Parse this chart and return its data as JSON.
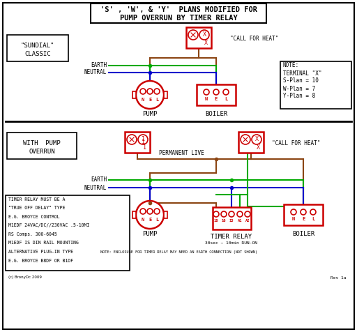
{
  "title_line1": "'S' , 'W', & 'Y'  PLANS MODIFIED FOR",
  "title_line2": "PUMP OVERRUN BY TIMER RELAY",
  "bg_color": "#ffffff",
  "diagram_color": "#000000",
  "red": "#cc0000",
  "green": "#00aa00",
  "blue": "#0000cc",
  "brown": "#8B4513",
  "call_for_heat": "\"CALL FOR HEAT\"",
  "permanent_live": "PERMANENT LIVE",
  "pump_label": "PUMP",
  "boiler_label": "BOILER",
  "timer_relay_label": "TIMER RELAY",
  "timer_relay_sub": "30sec ~ 10min RUN-ON",
  "timer_note_lines": [
    "TIMER RELAY MUST BE A",
    "\"TRUE OFF DELAY\" TYPE",
    "E.G. BROYCE CONTROL",
    "M1EDF 24VAC/DC//230VAC .5-10MI",
    "RS Comps. 300-6045",
    "M1EDF IS DIN RAIL MOUNTING",
    "ALTERNATIVE PLUG-IN TYPE",
    "E.G. BROYCE B8DF OR B1DF"
  ],
  "bottom_note": "NOTE: ENCLOSURE FOR TIMER RELAY MAY NEED AN EARTH CONNECTION (NOT SHOWN)",
  "rev_note": "Rev 1a",
  "copyright": "(c) BronyDc 2009",
  "note_lines": [
    "NOTE:",
    "TERMINAL \"X\"",
    "S-Plan = 10",
    "W-Plan = 7",
    "Y-Plan = 8"
  ],
  "sundial_classic_lines": [
    "\"SUNDIAL\"",
    "CLASSIC"
  ],
  "with_pump_overrun_lines": [
    "WITH  PUMP",
    "OVERRUN"
  ],
  "earth_label": "EARTH",
  "neutral_label": "NEUTRAL"
}
